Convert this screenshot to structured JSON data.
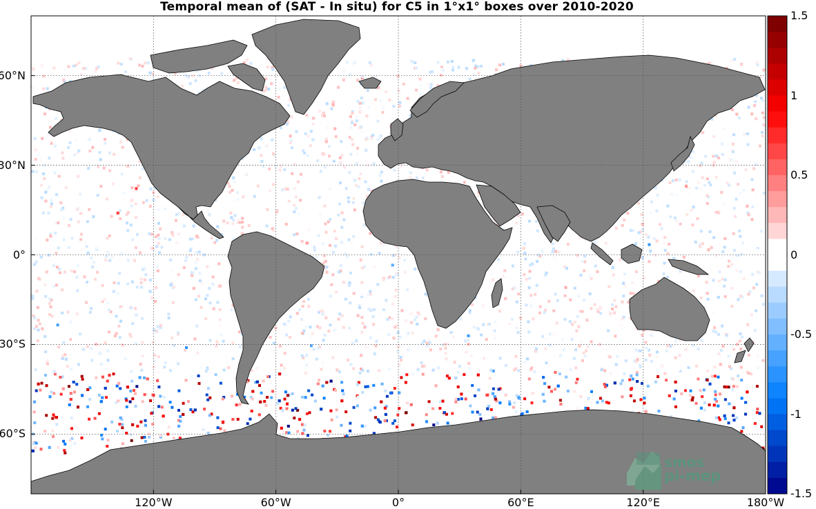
{
  "title": "Temporal mean of (SAT - In situ) for C5 in 1°x1° boxes over 2010-2020",
  "map": {
    "projection": "equirectangular",
    "lon_range": [
      -180,
      180
    ],
    "lat_range": [
      -80,
      80
    ],
    "gridlines": "dotted",
    "land_color": "#808080",
    "ocean_color": "#ffffff",
    "lon_ticks": [
      {
        "lon": -120,
        "label": "120°W"
      },
      {
        "lon": -60,
        "label": "60°W"
      },
      {
        "lon": 0,
        "label": "0°"
      },
      {
        "lon": 60,
        "label": "60°E"
      },
      {
        "lon": 120,
        "label": "120°E"
      },
      {
        "lon": 180,
        "label": "180°W"
      }
    ],
    "lat_ticks": [
      {
        "lat": 60,
        "label": "60°N"
      },
      {
        "lat": 30,
        "label": "30°N"
      },
      {
        "lat": 0,
        "label": "0°"
      },
      {
        "lat": -30,
        "label": "30°S"
      },
      {
        "lat": -60,
        "label": "60°S"
      }
    ]
  },
  "colorbar": {
    "range": [
      -1.5,
      1.5
    ],
    "levels": 30,
    "colormap": "blue-white-red",
    "ticks": [
      {
        "value": 1.5,
        "label": "1.5"
      },
      {
        "value": 1,
        "label": "1"
      },
      {
        "value": 0.5,
        "label": "0.5"
      },
      {
        "value": 0,
        "label": "0"
      },
      {
        "value": -0.5,
        "label": "-0.5"
      },
      {
        "value": -1,
        "label": "-1"
      },
      {
        "value": -1.5,
        "label": "-1.5"
      }
    ]
  },
  "logo": {
    "line1": "smos",
    "line2": "pi-mep",
    "color": "#4f9a7c"
  }
}
